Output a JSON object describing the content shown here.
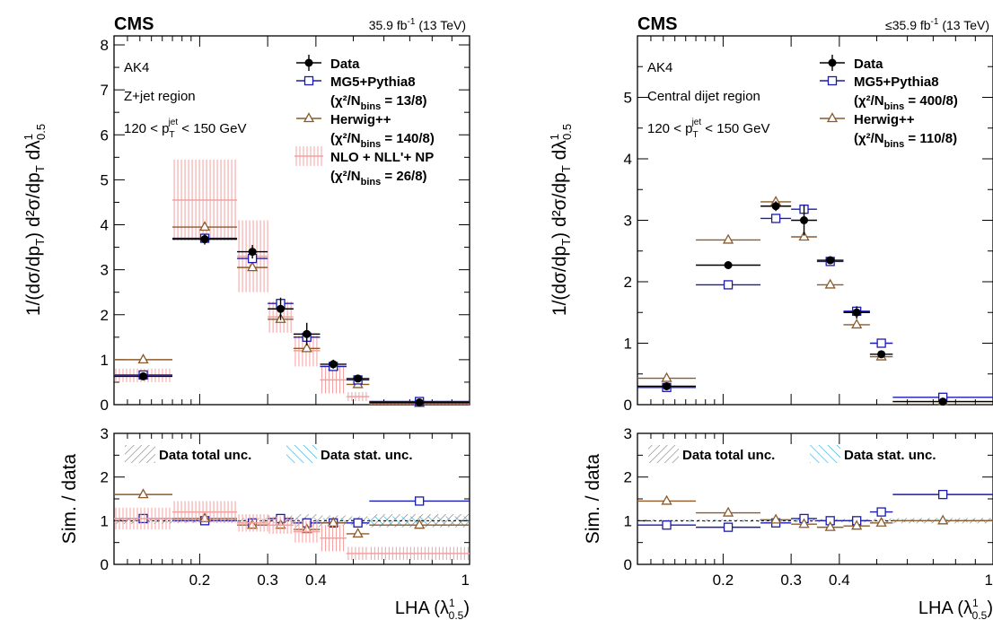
{
  "chart_data": [
    {
      "type": "scatter",
      "experiment": "CMS",
      "lumi": "35.9 fb",
      "lumi_exp": "-1",
      "energy": "(13 TeV)",
      "ylabel": "1/(dσ/dp_T) d²σ/(dp_T dλ¹_0.5)",
      "ratio_ylabel": "Sim. / data",
      "xlabel": "LHA (λ¹_0.5)",
      "xscale": "log",
      "xlim": [
        0.12,
        1.0
      ],
      "ylim": [
        0,
        8.2
      ],
      "ratio_ylim": [
        0,
        3
      ],
      "xticks": [
        0.2,
        0.3,
        0.4,
        1
      ],
      "xtick_labels": [
        "0.2",
        "0.3",
        "0.4",
        "1"
      ],
      "yticks": [
        0,
        1,
        2,
        3,
        4,
        5,
        6,
        7,
        8
      ],
      "ratio_yticks": [
        0,
        1,
        2,
        3
      ],
      "annotations": [
        "AK4",
        "Z+jet region",
        "120 < p",
        "T",
        "jet",
        " < 150 GeV"
      ],
      "bins": [
        0.12,
        0.17,
        0.25,
        0.3,
        0.35,
        0.41,
        0.48,
        0.55,
        1.0
      ],
      "legend_entries": [
        {
          "name": "Data",
          "chi2": ""
        },
        {
          "name": "MG5+Pythia8",
          "chi2": "(χ²/N",
          "chi2_sub": "bins",
          "chi2_val": " = 13/8)"
        },
        {
          "name": "Herwig++",
          "chi2": "(χ²/N",
          "chi2_sub": "bins",
          "chi2_val": " = 140/8)"
        },
        {
          "name": "NLO + NLL'+ NP",
          "chi2": "(χ²/N",
          "chi2_sub": "bins",
          "chi2_val": " = 26/8)"
        }
      ],
      "ratio_legend": [
        "Data total unc.",
        "Data stat. unc."
      ],
      "series": [
        {
          "name": "Data",
          "values": [
            0.63,
            3.68,
            3.4,
            2.13,
            1.57,
            0.9,
            0.58,
            0.05
          ],
          "errors": [
            0.05,
            0.12,
            0.15,
            0.25,
            0.25,
            0.1,
            0.05,
            0.02
          ],
          "color": "#000000"
        },
        {
          "name": "MG5+Pythia8",
          "values": [
            0.66,
            3.7,
            3.25,
            2.25,
            1.5,
            0.85,
            0.55,
            0.07
          ],
          "color": "#1a1ab0"
        },
        {
          "name": "Herwig++",
          "values": [
            1.0,
            3.95,
            3.05,
            1.9,
            1.25,
            0.85,
            0.45,
            0.03
          ],
          "color": "#8b5a2b"
        },
        {
          "name": "NLO + NLL'+ NP",
          "values": [
            0.65,
            4.55,
            3.3,
            1.95,
            1.2,
            0.55,
            0.18,
            0.02
          ],
          "errors": [
            0.15,
            0.9,
            0.8,
            0.35,
            0.35,
            0.3,
            0.1,
            0.03
          ],
          "color": "#f4a0a0"
        }
      ],
      "ratio_series": [
        {
          "name": "MG5+Pythia8",
          "values": [
            1.05,
            1.0,
            0.95,
            1.05,
            0.95,
            0.95,
            0.95,
            1.45
          ]
        },
        {
          "name": "Herwig++",
          "values": [
            1.6,
            1.05,
            0.9,
            0.9,
            0.8,
            0.95,
            0.7,
            0.9
          ]
        },
        {
          "name": "NLO + NLL'+ NP",
          "values": [
            1.05,
            1.2,
            0.95,
            0.9,
            0.75,
            0.6,
            0.25,
            0.25
          ],
          "errors": [
            0.25,
            0.25,
            0.2,
            0.2,
            0.25,
            0.3,
            0.15,
            0.15
          ]
        }
      ],
      "ratio_total_unc": [
        0.07,
        0.05,
        0.06,
        0.12,
        0.15,
        0.12,
        0.1,
        0.15
      ],
      "ratio_stat_unc": [
        0.04,
        0.03,
        0.04,
        0.06,
        0.07,
        0.06,
        0.06,
        0.1
      ]
    },
    {
      "type": "scatter",
      "experiment": "CMS",
      "lumi": "≤35.9 fb",
      "lumi_exp": "-1",
      "energy": "(13 TeV)",
      "ylabel": "1/(dσ/dp_T) d²σ/(dp_T dλ¹_0.5)",
      "ratio_ylabel": "Sim. / data",
      "xlabel": "LHA (λ¹_0.5)",
      "xscale": "log",
      "xlim": [
        0.12,
        1.0
      ],
      "ylim": [
        0,
        6.0
      ],
      "ratio_ylim": [
        0,
        3
      ],
      "xticks": [
        0.2,
        0.3,
        0.4,
        1
      ],
      "xtick_labels": [
        "0.2",
        "0.3",
        "0.4",
        "1"
      ],
      "yticks": [
        0,
        1,
        2,
        3,
        4,
        5
      ],
      "ratio_yticks": [
        0,
        1,
        2,
        3
      ],
      "annotations": [
        "AK4",
        "Central dijet region",
        "120 < p",
        "T",
        "jet",
        " < 150 GeV"
      ],
      "bins": [
        0.12,
        0.17,
        0.25,
        0.3,
        0.35,
        0.41,
        0.48,
        0.55,
        1.0
      ],
      "legend_entries": [
        {
          "name": "Data",
          "chi2": ""
        },
        {
          "name": "MG5+Pythia8",
          "chi2": "(χ²/N",
          "chi2_sub": "bins",
          "chi2_val": " = 400/8)"
        },
        {
          "name": "Herwig++",
          "chi2": "(χ²/N",
          "chi2_sub": "bins",
          "chi2_val": " = 110/8)"
        }
      ],
      "ratio_legend": [
        "Data total unc.",
        "Data stat. unc."
      ],
      "series": [
        {
          "name": "Data",
          "values": [
            0.3,
            2.27,
            3.23,
            3.0,
            2.35,
            1.5,
            0.82,
            0.05
          ],
          "errors": [
            0.03,
            0.05,
            0.08,
            0.25,
            0.06,
            0.1,
            0.05,
            0.01
          ],
          "color": "#000000"
        },
        {
          "name": "MG5+Pythia8",
          "values": [
            0.28,
            1.95,
            3.03,
            3.18,
            2.33,
            1.52,
            1.0,
            0.12
          ],
          "color": "#1a1ab0"
        },
        {
          "name": "Herwig++",
          "values": [
            0.43,
            2.68,
            3.3,
            2.73,
            1.95,
            1.3,
            0.78,
            0.05
          ],
          "color": "#8b5a2b"
        }
      ],
      "ratio_series": [
        {
          "name": "MG5+Pythia8",
          "values": [
            0.9,
            0.85,
            0.95,
            1.05,
            1.0,
            1.0,
            1.2,
            1.6
          ]
        },
        {
          "name": "Herwig++",
          "values": [
            1.45,
            1.18,
            1.02,
            0.92,
            0.85,
            0.88,
            0.95,
            1.0
          ]
        }
      ],
      "ratio_total_unc": [
        0.03,
        0.03,
        0.03,
        0.04,
        0.04,
        0.04,
        0.05,
        0.06
      ],
      "ratio_stat_unc": [
        0.02,
        0.02,
        0.02,
        0.02,
        0.02,
        0.02,
        0.03,
        0.04
      ]
    }
  ]
}
